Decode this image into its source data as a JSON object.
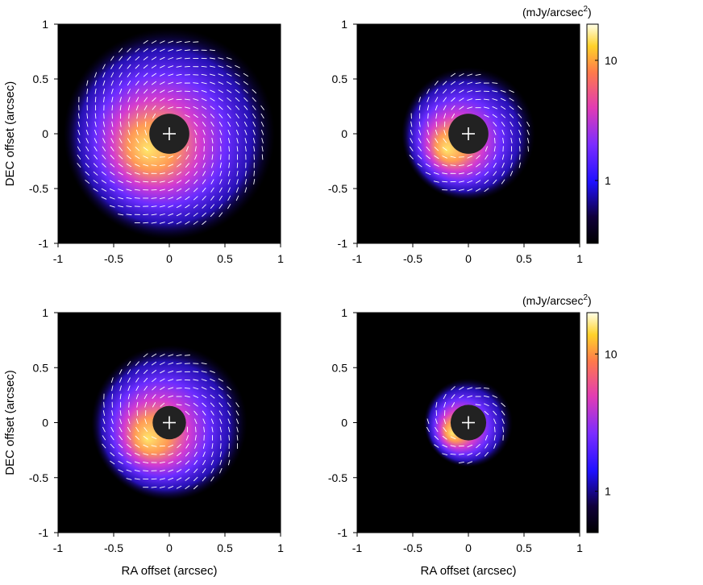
{
  "figure": {
    "colorbar_unit": "(mJy/arcsec",
    "colorbar_unit_sup": "2",
    "colorbar_unit_close": ")"
  },
  "chart_data": [
    {
      "type": "heatmap",
      "panel": "top-left",
      "xlabel": "",
      "ylabel": "DEC offset  (arcsec)",
      "xlim": [
        -1,
        1
      ],
      "ylim": [
        -1,
        1
      ],
      "xticks": [
        "-1",
        "-0.5",
        "0",
        "0.5",
        "1"
      ],
      "yticks": [
        "1",
        "0.5",
        "0",
        "-0.5",
        "-1"
      ],
      "mask_radius_arcsec": 0.18,
      "peak_offset": [
        -0.2,
        -0.15
      ],
      "emission_extent_arcsec": 0.95,
      "vectors": "polarization vectors over full disk",
      "colorbar": false
    },
    {
      "type": "heatmap",
      "panel": "top-right",
      "xlabel": "",
      "ylabel": "",
      "xlim": [
        -1,
        1
      ],
      "ylim": [
        -1,
        1
      ],
      "xticks": [
        "-1",
        "-0.5",
        "0",
        "0.5",
        "1"
      ],
      "yticks": [
        "1",
        "0.5",
        "0",
        "-0.5",
        "-1"
      ],
      "mask_radius_arcsec": 0.18,
      "peak_offset": [
        -0.2,
        -0.15
      ],
      "emission_extent_arcsec": 0.6,
      "vectors": "polarization vectors on ring",
      "colorbar": true,
      "colorbar_ticks": [
        "10",
        "1"
      ],
      "colorbar_range": [
        0.3,
        20
      ],
      "colorbar_scale": "log"
    },
    {
      "type": "heatmap",
      "panel": "bottom-left",
      "xlabel": "RA offset  (arcsec)",
      "ylabel": "DEC offset  (arcsec)",
      "xlim": [
        -1,
        1
      ],
      "ylim": [
        -1,
        1
      ],
      "xticks": [
        "-1",
        "-0.5",
        "0",
        "0.5",
        "1"
      ],
      "yticks": [
        "1",
        "0.5",
        "0",
        "-0.5",
        "-1"
      ],
      "mask_radius_arcsec": 0.15,
      "peak_offset": [
        -0.2,
        -0.15
      ],
      "emission_extent_arcsec": 0.7,
      "vectors": "polarization vectors over disk",
      "colorbar": false
    },
    {
      "type": "heatmap",
      "panel": "bottom-right",
      "xlabel": "RA offset  (arcsec)",
      "ylabel": "",
      "xlim": [
        -1,
        1
      ],
      "ylim": [
        -1,
        1
      ],
      "xticks": [
        "-1",
        "-0.5",
        "0",
        "0.5",
        "1"
      ],
      "yticks": [
        "1",
        "0.5",
        "0",
        "-0.5",
        "-1"
      ],
      "mask_radius_arcsec": 0.16,
      "peak_offset": [
        -0.15,
        -0.1
      ],
      "emission_extent_arcsec": 0.4,
      "vectors": "polarization vectors on compact ring",
      "colorbar": true,
      "colorbar_ticks": [
        "10",
        "1"
      ],
      "colorbar_range": [
        0.5,
        20
      ],
      "colorbar_scale": "log"
    }
  ],
  "colors": {
    "background": "#000000",
    "mask": "#222222",
    "vector": "#ffffff"
  }
}
